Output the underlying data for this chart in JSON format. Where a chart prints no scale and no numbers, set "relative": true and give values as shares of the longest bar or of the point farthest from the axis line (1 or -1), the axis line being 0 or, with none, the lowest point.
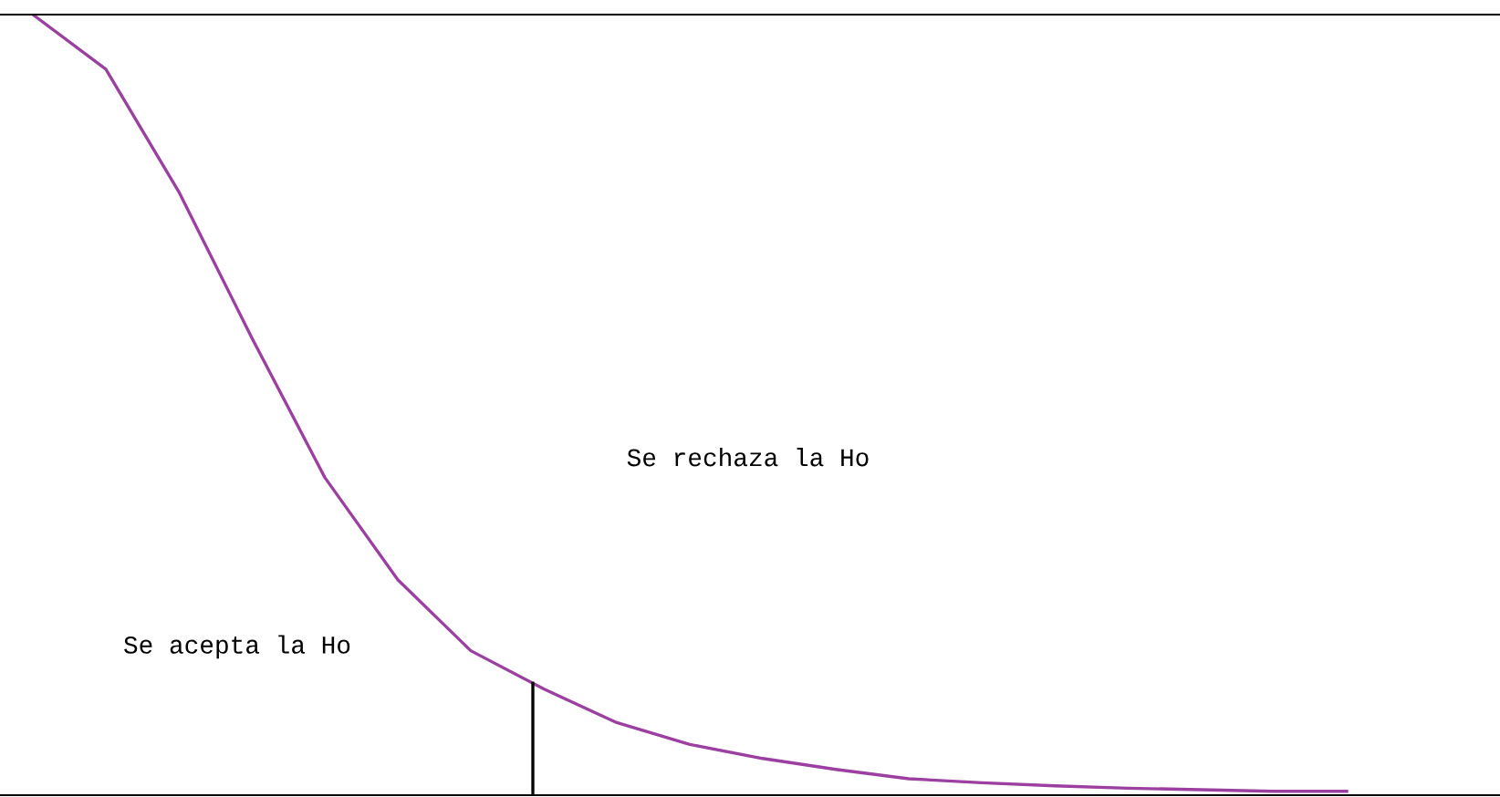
{
  "chart_data": {
    "type": "line",
    "relative": true,
    "categories": [
      null,
      null,
      null,
      null,
      null,
      null,
      null,
      null,
      null,
      null,
      null,
      null,
      null,
      null,
      null,
      null,
      null,
      null,
      null
    ],
    "series": [
      {
        "color": "#9b3fa0",
        "values": [
          1.0,
          0.93,
          0.773,
          0.586,
          0.407,
          0.276,
          0.185,
          0.136,
          0.093,
          0.065,
          0.047,
          0.033,
          0.021,
          0.016,
          0.012,
          0.009,
          0.007,
          0.005,
          0.005
        ]
      }
    ],
    "annotations": [
      "Se rechaza la Ho",
      "Se acepta la Ho"
    ],
    "legend": false,
    "marker": "none",
    "line_style": "solid"
  }
}
